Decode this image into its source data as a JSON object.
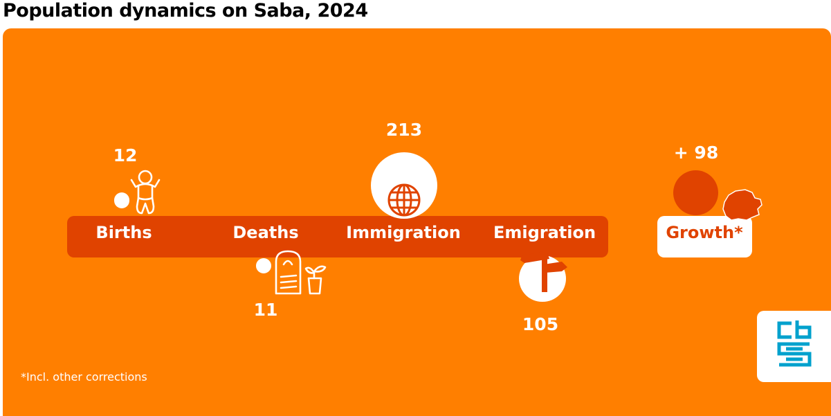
{
  "title": "Population dynamics on Saba, 2024",
  "colors": {
    "panel": "#ff7f00",
    "bar": "#e04300",
    "bubble": "#ffffff",
    "logo": "#00a1cd"
  },
  "chart_data": {
    "type": "bubble",
    "title": "Population dynamics on Saba, 2024",
    "categories": [
      "Births",
      "Deaths",
      "Immigration",
      "Emigration",
      "Growth*"
    ],
    "values": [
      12,
      11,
      213,
      105,
      98
    ],
    "value_labels": [
      "12",
      "11",
      "213",
      "105",
      "+ 98"
    ],
    "series": [
      {
        "name": "",
        "values": [
          12,
          11,
          213,
          105,
          98
        ]
      }
    ]
  },
  "footnote": "*Incl. other corrections",
  "icons": [
    "baby-icon",
    "gravestone-icon",
    "globe-icon",
    "signpost-icon",
    "saba-island-icon",
    "cbs-logo-icon"
  ]
}
